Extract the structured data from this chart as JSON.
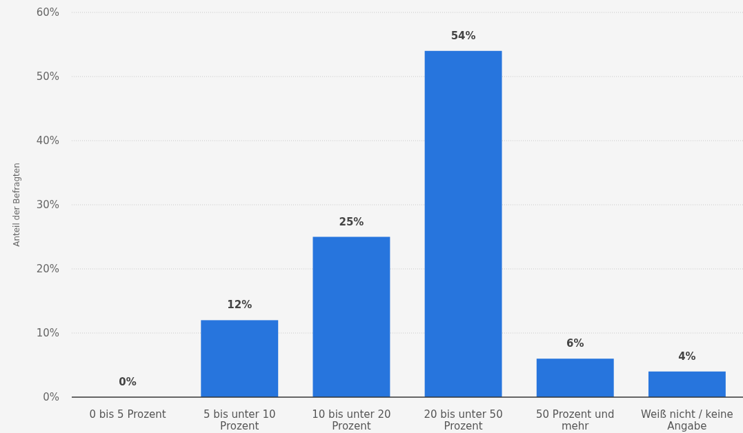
{
  "chart_data": {
    "type": "bar",
    "ylabel": "Anteil der Befragten",
    "categories": [
      "0 bis 5 Prozent",
      "5 bis unter 10 Prozent",
      "10 bis unter 20 Prozent",
      "20 bis unter 50 Prozent",
      "50 Prozent und mehr",
      "Weiß nicht / keine Angabe"
    ],
    "values": [
      0,
      12,
      25,
      54,
      6,
      4
    ],
    "value_labels": [
      "0%",
      "12%",
      "25%",
      "54%",
      "6%",
      "4%"
    ],
    "color": "#2775dd",
    "ylim": [
      0,
      60
    ],
    "yticks": [
      {
        "value": 0,
        "label": "0%"
      },
      {
        "value": 10,
        "label": "10%"
      },
      {
        "value": 20,
        "label": "20%"
      },
      {
        "value": 30,
        "label": "30%"
      },
      {
        "value": 40,
        "label": "40%"
      },
      {
        "value": 50,
        "label": "50%"
      },
      {
        "value": 60,
        "label": "60%"
      }
    ],
    "grid": "y"
  }
}
